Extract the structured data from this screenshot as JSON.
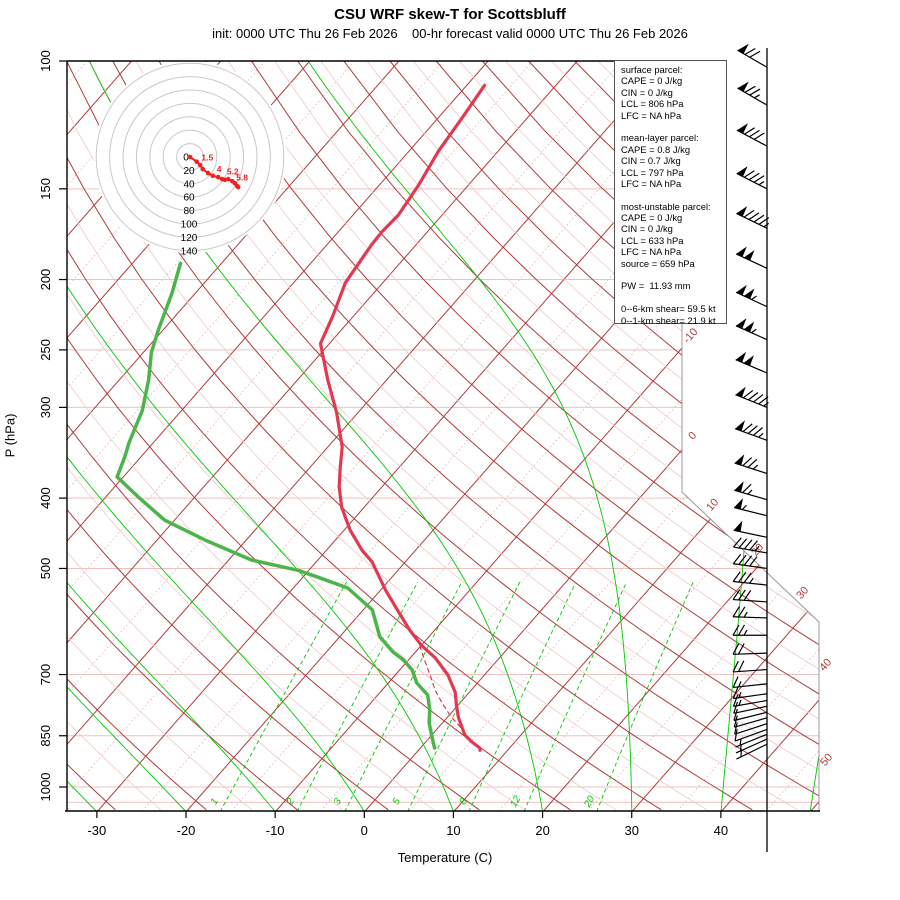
{
  "title": "CSU WRF skew-T for Scottsbluff",
  "subtitle": "init: 0000 UTC Thu 26 Feb 2026    00-hr forecast valid 0000 UTC Thu 26 Feb 2026",
  "info_box": {
    "lines": [
      "surface parcel:",
      "CAPE = 0 J/kg",
      "CIN = 0 J/kg",
      "LCL = 806 hPa",
      "LFC = NA hPa",
      "",
      "mean-layer parcel:",
      "CAPE = 0.8 J/kg",
      "CIN = 0.7 J/kg",
      "LCL = 797 hPa",
      "LFC = NA hPa",
      "",
      "most-unstable parcel:",
      "CAPE = 0 J/kg",
      "CIN = 0 J/kg",
      "LCL = 633 hPa",
      "LFC = NA hPa",
      "source = 659 hPa",
      "",
      "PW =  11.93 mm",
      "",
      "0--6-km shear= 59.5 kt",
      "0--1-km shear= 21.9 kt"
    ]
  },
  "chart_data": {
    "type": "line",
    "title": "CSU WRF skew-T for Scottsbluff",
    "x_axis": {
      "label": "Temperature (C)",
      "ticks": [
        -30,
        -20,
        -10,
        0,
        10,
        20,
        30,
        40
      ]
    },
    "y_axis": {
      "label": "P (hPa)",
      "scale": "log",
      "ticks": [
        100,
        150,
        200,
        250,
        300,
        400,
        500,
        700,
        850,
        1000
      ],
      "range": [
        100,
        1082
      ]
    },
    "background": {
      "isotherm_edge_labels_c": [
        -10,
        0,
        10,
        20,
        30,
        40,
        50
      ],
      "mixing_ratio_labels_gkg": [
        1,
        2,
        3,
        5,
        8,
        12,
        20
      ]
    },
    "series": [
      {
        "name": "temperature",
        "units": "C,hPa",
        "points": [
          [
            -58.0,
            108
          ],
          [
            -57.3,
            120
          ],
          [
            -56.7,
            133
          ],
          [
            -55.6,
            148
          ],
          [
            -54.9,
            163
          ],
          [
            -55.1,
            172
          ],
          [
            -55.0,
            179
          ],
          [
            -54.2,
            202
          ],
          [
            -52.3,
            225
          ],
          [
            -51.0,
            245
          ],
          [
            -46.6,
            275
          ],
          [
            -42.4,
            305
          ],
          [
            -38.4,
            340
          ],
          [
            -36.6,
            363
          ],
          [
            -34.8,
            386
          ],
          [
            -32.5,
            412
          ],
          [
            -29.3,
            443
          ],
          [
            -26.0,
            472
          ],
          [
            -23.7,
            490
          ],
          [
            -19.5,
            535
          ],
          [
            -16.2,
            570
          ],
          [
            -12.8,
            608
          ],
          [
            -10.0,
            638
          ],
          [
            -7.2,
            664
          ],
          [
            -4.1,
            701
          ],
          [
            -1.6,
            740
          ],
          [
            -0.2,
            771
          ],
          [
            1.2,
            801
          ],
          [
            3.7,
            848
          ],
          [
            5.2,
            867
          ],
          [
            6.7,
            884
          ],
          [
            6.9,
            890
          ]
        ]
      },
      {
        "name": "dewpoint",
        "units": "C,hPa",
        "points": [
          [
            -74.6,
            190
          ],
          [
            -72.6,
            209
          ],
          [
            -70.5,
            235
          ],
          [
            -69.1,
            252
          ],
          [
            -66.7,
            275
          ],
          [
            -64.4,
            303
          ],
          [
            -62.7,
            336
          ],
          [
            -61.8,
            351
          ],
          [
            -60.7,
            374
          ],
          [
            -56.1,
            400
          ],
          [
            -51.1,
            429
          ],
          [
            -44.6,
            457
          ],
          [
            -37.4,
            487
          ],
          [
            -31.2,
            503
          ],
          [
            -28.3,
            514
          ],
          [
            -23.9,
            532
          ],
          [
            -19.0,
            570
          ],
          [
            -15.5,
            621
          ],
          [
            -12.5,
            652
          ],
          [
            -10.6,
            668
          ],
          [
            -8.6,
            690
          ],
          [
            -6.8,
            719
          ],
          [
            -4.4,
            747
          ],
          [
            -2.7,
            783
          ],
          [
            -1.5,
            816
          ],
          [
            0.2,
            853
          ],
          [
            1.6,
            884
          ]
        ]
      },
      {
        "name": "parcel-ascent",
        "style": "dashed",
        "units": "C,hPa",
        "points": [
          [
            -10.2,
            638
          ],
          [
            -8.5,
            664
          ],
          [
            -6.1,
            701
          ],
          [
            -4.0,
            736
          ],
          [
            -2.0,
            766
          ],
          [
            0.2,
            798
          ],
          [
            2.5,
            828
          ],
          [
            4.8,
            862
          ],
          [
            6.2,
            881
          ]
        ]
      }
    ],
    "wind_barbs": {
      "units": "kt",
      "levels_p_speed_dir": [
        [
          102,
          70,
          300
        ],
        [
          115,
          75,
          300
        ],
        [
          131,
          80,
          298
        ],
        [
          150,
          85,
          297
        ],
        [
          170,
          95,
          296
        ],
        [
          193,
          100,
          295
        ],
        [
          218,
          105,
          295
        ],
        [
          242,
          105,
          294
        ],
        [
          269,
          100,
          293
        ],
        [
          300,
          95,
          292
        ],
        [
          333,
          85,
          290
        ],
        [
          370,
          75,
          288
        ],
        [
          402,
          65,
          286
        ],
        [
          423,
          55,
          284
        ],
        [
          453,
          50,
          282
        ],
        [
          476,
          45,
          280
        ],
        [
          500,
          40,
          278
        ],
        [
          527,
          35,
          276
        ],
        [
          556,
          30,
          274
        ],
        [
          585,
          25,
          272
        ],
        [
          618,
          25,
          270
        ],
        [
          654,
          20,
          268
        ],
        [
          689,
          20,
          266
        ],
        [
          721,
          15,
          264
        ],
        [
          744,
          15,
          262
        ],
        [
          760,
          15,
          260
        ],
        [
          774,
          10,
          258
        ],
        [
          789,
          10,
          256
        ],
        [
          803,
          10,
          254
        ],
        [
          818,
          10,
          252
        ],
        [
          833,
          10,
          250
        ],
        [
          846,
          5,
          248
        ],
        [
          859,
          5,
          246
        ],
        [
          873,
          5,
          244
        ]
      ]
    },
    "hodograph": {
      "ring_step_kt": 20,
      "ring_labels": [
        "0",
        "20",
        "40",
        "60",
        "80",
        "100",
        "120",
        "140"
      ],
      "trace_uv_kt": [
        [
          0,
          0
        ],
        [
          10,
          -7
        ],
        [
          15,
          -12
        ],
        [
          19,
          -18
        ],
        [
          27,
          -24
        ],
        [
          34,
          -28
        ],
        [
          42,
          -30
        ],
        [
          48,
          -33
        ],
        [
          52,
          -34
        ],
        [
          57,
          -33
        ],
        [
          63,
          -36
        ],
        [
          67,
          -39
        ],
        [
          70,
          -43
        ],
        [
          72,
          -45
        ]
      ],
      "point_labels": [
        {
          "text": "1.5",
          "u": 17,
          "v": -8
        },
        {
          "text": "4",
          "u": 40,
          "v": -25
        },
        {
          "text": "5.2",
          "u": 55,
          "v": -29
        },
        {
          "text": "5.8",
          "u": 69,
          "v": -38
        }
      ]
    }
  },
  "colors": {
    "temperature": "#e23850",
    "dewpoint": "#4bb44a",
    "parcel": "#e23850",
    "isotherm_dark": "#b03a3a",
    "isotherm_light": "#e9b6b6",
    "dry_adiabat_dark": "#b03a3a",
    "dry_adiabat_light": "#f0c8c8",
    "moist_adiabat": "#00c800",
    "mixing_ratio": "#00c800",
    "pressure_line": "#f0c0c0",
    "hodo_ring": "#c8c8c8",
    "hodo_trace": "#ee2222",
    "border": "#999999",
    "axis": "#000000"
  }
}
